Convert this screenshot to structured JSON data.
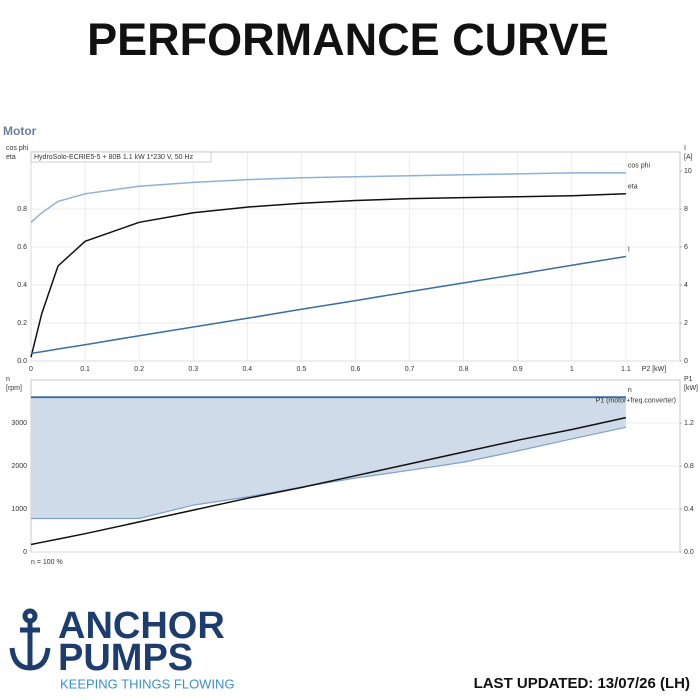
{
  "header": {
    "title": "PERFORMANCE CURVE",
    "section": "Motor"
  },
  "footer": {
    "brand_line1": "ANCHOR",
    "brand_line2": "PUMPS",
    "tagline": "KEEPING THINGS FLOWING",
    "last_updated": "LAST UPDATED: 13/07/26 (LH)"
  },
  "chart_data": [
    {
      "type": "line",
      "subtitle": "HydroSolo-ECRIE5-5 + 80B   1.1 kW   1*230 V, 50 Hz",
      "ylabel": [
        "cos phi",
        "eta"
      ],
      "y2label": [
        "I",
        "[A]"
      ],
      "xlabel": "P2 [kW]",
      "x": [
        0,
        0.02,
        0.05,
        0.1,
        0.2,
        0.3,
        0.4,
        0.5,
        0.6,
        0.7,
        0.8,
        0.9,
        1.0,
        1.1
      ],
      "xlim": [
        0,
        1.2
      ],
      "xticks": [
        0,
        0.1,
        0.2,
        0.3,
        0.4,
        0.5,
        0.6,
        0.7,
        0.8,
        0.9,
        1.0,
        1.1
      ],
      "ylim": [
        0,
        1.1
      ],
      "yticks": [
        {
          "value": 0,
          "label": "0.0"
        },
        0.2,
        0.4,
        0.6,
        0.8
      ],
      "y2lim": [
        0,
        11
      ],
      "y2ticks": [
        0,
        2,
        4,
        6,
        8,
        10
      ],
      "grid": true,
      "series": [
        {
          "name": "cos phi",
          "color": "#8fb0d6",
          "values": [
            0.73,
            0.78,
            0.84,
            0.88,
            0.92,
            0.94,
            0.955,
            0.965,
            0.97,
            0.975,
            0.98,
            0.985,
            0.99,
            0.99
          ]
        },
        {
          "name": "eta",
          "color": "#111111",
          "values": [
            0.02,
            0.25,
            0.5,
            0.63,
            0.73,
            0.78,
            0.81,
            0.83,
            0.845,
            0.855,
            0.86,
            0.865,
            0.87,
            0.88
          ]
        },
        {
          "name": "I",
          "color": "#3a6ea5",
          "axis": "y2",
          "values": [
            0.4,
            0.49,
            0.63,
            0.86,
            1.33,
            1.79,
            2.25,
            2.72,
            3.18,
            3.65,
            4.11,
            4.57,
            5.04,
            5.5
          ]
        }
      ]
    },
    {
      "type": "line",
      "note": "n = 100 %",
      "ylabel": [
        "n",
        "[rpm]"
      ],
      "y2label": [
        "P1",
        "[kW]"
      ],
      "x": [
        0,
        0.02,
        0.05,
        0.1,
        0.2,
        0.3,
        0.4,
        0.5,
        0.6,
        0.7,
        0.8,
        0.9,
        1.0,
        1.1
      ],
      "xlim": [
        0,
        1.2
      ],
      "ylim": [
        0,
        4000
      ],
      "yticks": [
        0,
        1000,
        2000,
        3000
      ],
      "y2lim": [
        0,
        1.6
      ],
      "y2ticks": [
        {
          "value": 0,
          "label": "0.0"
        },
        0.4,
        0.8,
        1.2
      ],
      "grid": true,
      "series": [
        {
          "name": "n",
          "color": "#3a6ea5",
          "fill": "#cfdbe8",
          "lower_color": "#7fa2c8",
          "values": [
            3600,
            3600,
            3600,
            3600,
            3600,
            3600,
            3600,
            3600,
            3600,
            3600,
            3600,
            3600,
            3600,
            3600
          ],
          "lower": [
            780,
            780,
            780,
            780,
            780,
            1090,
            1280,
            1510,
            1720,
            1900,
            2090,
            2350,
            2630,
            2900
          ]
        },
        {
          "name": "P1 (motor+freq.converter)",
          "color": "#111111",
          "axis": "y2",
          "values": [
            0.07,
            0.09,
            0.12,
            0.17,
            0.28,
            0.39,
            0.5,
            0.6,
            0.71,
            0.82,
            0.93,
            1.04,
            1.14,
            1.25
          ]
        }
      ]
    }
  ]
}
